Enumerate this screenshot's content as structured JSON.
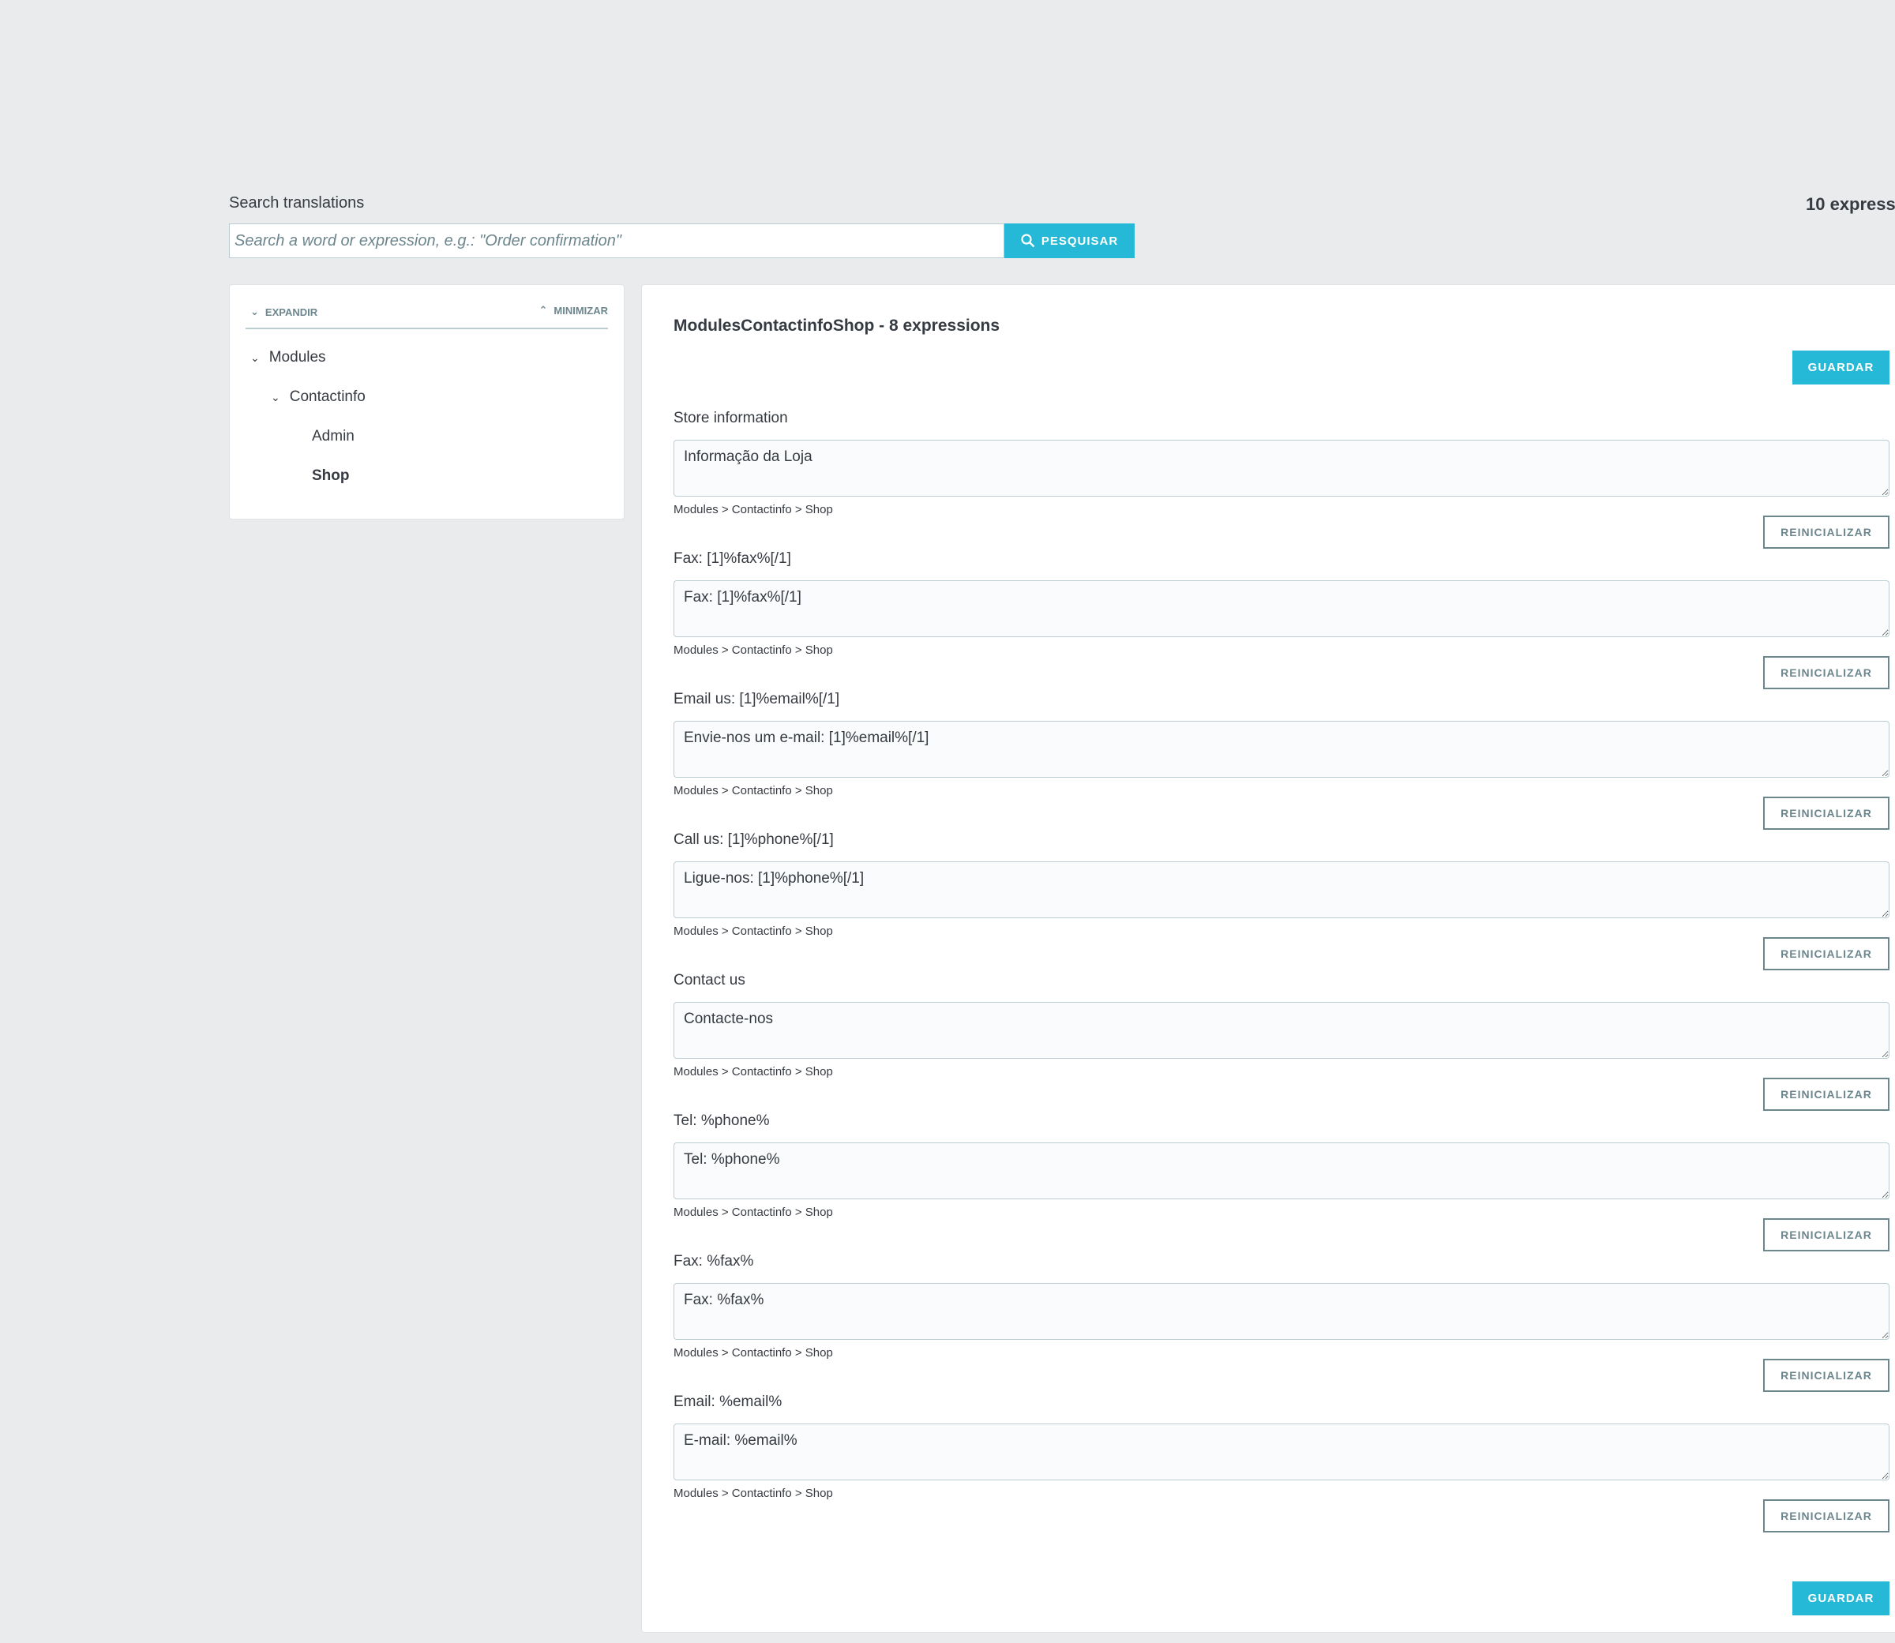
{
  "search": {
    "label": "Search translations",
    "placeholder": "Search a word or expression, e.g.: \"Order confirmation\"",
    "button_label": "PESQUISAR",
    "count": "10 expressi"
  },
  "tree": {
    "expand_label": "EXPANDIR",
    "collapse_label": "MINIMIZAR",
    "nodes": [
      {
        "label": "Modules"
      },
      {
        "label": "Contactinfo"
      },
      {
        "label": "Admin"
      },
      {
        "label": "Shop"
      }
    ]
  },
  "main": {
    "title": "ModulesContactinfoShop - 8 expressions",
    "save_label": "GUARDAR",
    "reset_label": "REINICIALIZAR",
    "items": [
      {
        "label": "Store information",
        "value": "Informação da Loja",
        "breadcrumb": "Modules > Contactinfo > Shop"
      },
      {
        "label": "Fax: [1]%fax%[/1]",
        "value": "Fax: [1]%fax%[/1]",
        "breadcrumb": "Modules > Contactinfo > Shop"
      },
      {
        "label": "Email us: [1]%email%[/1]",
        "value": "Envie-nos um e-mail: [1]%email%[/1]",
        "breadcrumb": "Modules > Contactinfo > Shop"
      },
      {
        "label": "Call us: [1]%phone%[/1]",
        "value": "Ligue-nos: [1]%phone%[/1]",
        "breadcrumb": "Modules > Contactinfo > Shop"
      },
      {
        "label": "Contact us",
        "value": "Contacte-nos",
        "breadcrumb": "Modules > Contactinfo > Shop"
      },
      {
        "label": "Tel: %phone%",
        "value": "Tel: %phone%",
        "breadcrumb": "Modules > Contactinfo > Shop"
      },
      {
        "label": "Fax: %fax%",
        "value": "Fax: %fax%",
        "breadcrumb": "Modules > Contactinfo > Shop"
      },
      {
        "label": "Email: %email%",
        "value": "E-mail: %email%",
        "breadcrumb": "Modules > Contactinfo > Shop"
      }
    ]
  },
  "colors": {
    "accent": "#25b9d7",
    "background": "#eaebed",
    "text": "#363a41",
    "muted": "#6c868e"
  }
}
